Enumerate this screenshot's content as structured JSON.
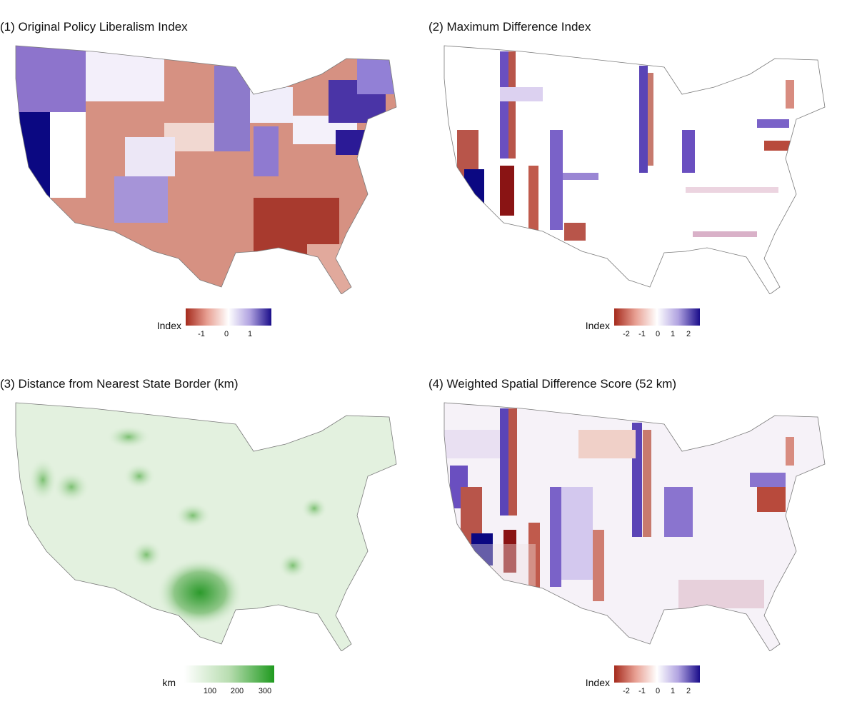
{
  "panels": [
    {
      "title": "(1) Original Policy Liberalism Index",
      "legend": {
        "title": "Index",
        "ticks": [
          "-1",
          "0",
          "1"
        ],
        "colors": [
          "#a52a1c",
          "#e8a093",
          "#ffffff",
          "#b0a2e0",
          "#1a0d8a"
        ]
      }
    },
    {
      "title": "(2) Maximum Difference Index",
      "legend": {
        "title": "Index",
        "ticks": [
          "-2",
          "-1",
          "0",
          "1",
          "2"
        ],
        "colors": [
          "#a52a1c",
          "#e8a093",
          "#ffffff",
          "#b0a2e0",
          "#1a0d8a"
        ]
      }
    },
    {
      "title": "(3) Distance from Nearest State Border (km)",
      "legend": {
        "title": "km",
        "ticks": [
          "100",
          "200",
          "300"
        ],
        "colors": [
          "#ffffff",
          "#b8ddb0",
          "#1f9a1f"
        ]
      }
    },
    {
      "title": "(4) Weighted Spatial Difference Score (52 km)",
      "legend": {
        "title": "Index",
        "ticks": [
          "-2",
          "-1",
          "0",
          "1",
          "2"
        ],
        "colors": [
          "#a52a1c",
          "#e8a093",
          "#ffffff",
          "#b0a2e0",
          "#1a0d8a"
        ]
      }
    }
  ]
}
